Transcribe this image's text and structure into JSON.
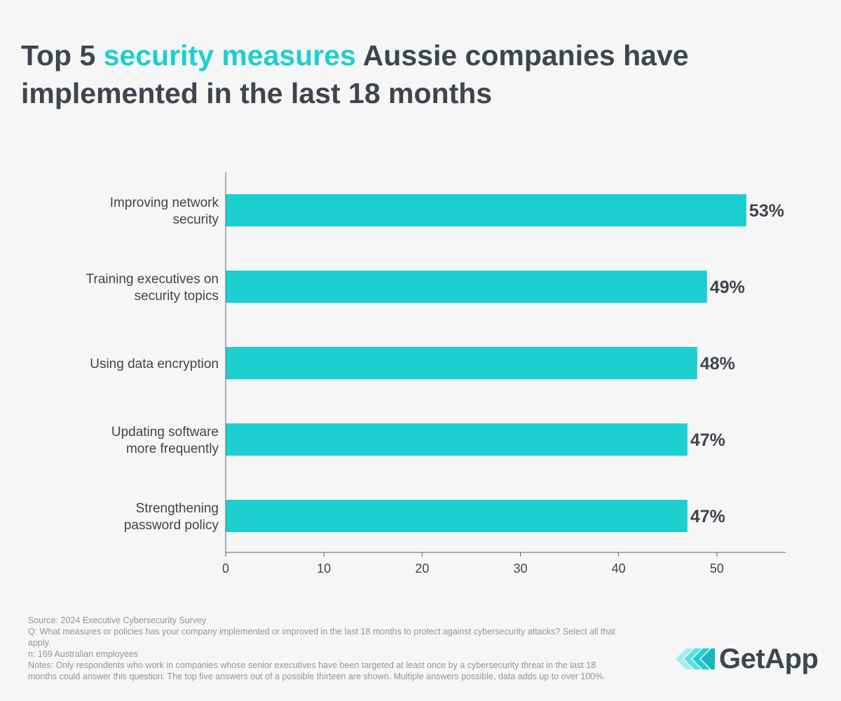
{
  "title": {
    "part1": "Top 5 ",
    "highlight": "security measures",
    "part2": " Aussie companies have implemented in the last 18 months"
  },
  "colors": {
    "bar": "#1ccfd1",
    "highlight": "#1ccfd1",
    "text": "#3f454e",
    "axis": "#5f656d",
    "footer": "#8f959c"
  },
  "chart_data": {
    "type": "bar",
    "orientation": "horizontal",
    "title": "Top 5 security measures Aussie companies have implemented in the last 18 months",
    "categories": [
      [
        "Improving network",
        "security"
      ],
      [
        "Training executives on",
        "security topics"
      ],
      [
        "Using data encryption"
      ],
      [
        "Updating software",
        "more frequently"
      ],
      [
        "Strengthening",
        "password policy"
      ]
    ],
    "values": [
      53,
      49,
      48,
      47,
      47
    ],
    "value_labels": [
      "53%",
      "49%",
      "48%",
      "47%",
      "47%"
    ],
    "xlim": [
      0,
      57
    ],
    "xticks": [
      0,
      10,
      20,
      30,
      40,
      50
    ],
    "xlabel": "",
    "ylabel": "",
    "grid": false
  },
  "footer": {
    "source": "Source: 2024 Executive Cybersecurity Survey",
    "question": "Q: What measures or policies has your company implemented or improved in the last 18 months to protect against cybersecurity attacks? Select all that apply.",
    "sample": "n: 169 Australian employees",
    "notes": "Notes: Only respondents who work in companies whose senior executives have been targeted at least once by a cybersecurity threat in the last 18 months could answer this question. The top five answers out of a possible thirteen are shown. Multiple answers possible, data adds up to over 100%."
  },
  "logo": {
    "name": "GetApp",
    "icon": "getapp-chevrons-icon"
  }
}
